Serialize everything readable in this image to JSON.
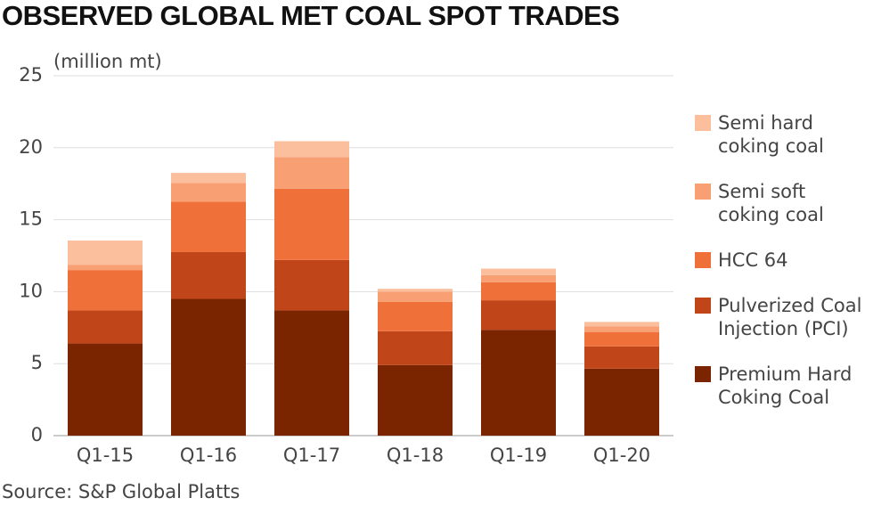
{
  "chart_data": {
    "type": "stacked_bar",
    "title": "OBSERVED GLOBAL MET COAL SPOT TRADES",
    "y_label": "(million mt)",
    "source": "Source: S&P Global Platts",
    "categories": [
      "Q1-15",
      "Q1-16",
      "Q1-17",
      "Q1-18",
      "Q1-19",
      "Q1-20"
    ],
    "series": [
      {
        "name": "Premium Hard Coking Coal",
        "color": "#7a2500",
        "values": [
          6.4,
          9.5,
          8.7,
          4.9,
          7.35,
          4.65
        ]
      },
      {
        "name": "Pulverized Coal Injection (PCI)",
        "color": "#c0461a",
        "values": [
          2.3,
          3.25,
          3.5,
          2.35,
          2.05,
          1.55
        ]
      },
      {
        "name": "HCC 64",
        "color": "#f0703a",
        "values": [
          2.8,
          3.5,
          4.95,
          2.05,
          1.25,
          1.0
        ]
      },
      {
        "name": "Semi soft coking coal",
        "color": "#f89f74",
        "values": [
          0.35,
          1.3,
          2.2,
          0.7,
          0.5,
          0.4
        ]
      },
      {
        "name": "Semi hard coking coal",
        "color": "#fbbf9e",
        "values": [
          1.7,
          0.7,
          1.1,
          0.2,
          0.45,
          0.3
        ]
      }
    ],
    "ylim": [
      0,
      25
    ],
    "yticks": [
      0,
      5,
      10,
      15,
      20,
      25
    ],
    "grid": true
  }
}
